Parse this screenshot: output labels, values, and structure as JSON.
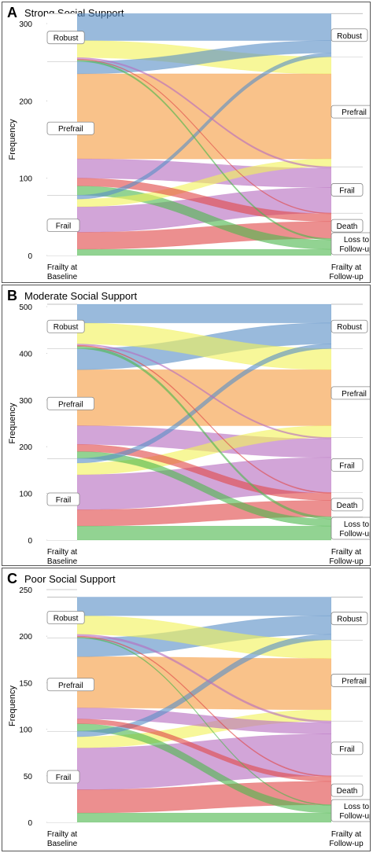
{
  "chart_data": [
    {
      "type": "alluvial",
      "panel_letter": "A",
      "title": "Strong Social Support",
      "ylabel": "Frequency",
      "ylim": [
        0,
        300
      ],
      "yticks": [
        0,
        100,
        200,
        300
      ],
      "axes": [
        "Frailty at Baseline",
        "Frailty at Follow-up"
      ],
      "baseline_states": [
        "Robust",
        "Prefrail",
        "Frail"
      ],
      "followup_states": [
        "Robust",
        "Prefrail",
        "Frail",
        "Death",
        "Loss to Follow-up"
      ],
      "colors": {
        "Robust": "#5b8fc7",
        "Prefrail": "#f59c42",
        "Frail": "#b76ec0",
        "Death": "#e04a4a",
        "Loss to Follow-up": "#4fb84f",
        "Prefrail-alt": "#f2f25a"
      },
      "flows": [
        {
          "from": "Frail",
          "to": "Loss to Follow-up",
          "value": 8
        },
        {
          "from": "Frail",
          "to": "Death",
          "value": 22
        },
        {
          "from": "Frail",
          "to": "Frail",
          "value": 33
        },
        {
          "from": "Frail",
          "to": "Prefrail",
          "value": 10
        },
        {
          "from": "Frail",
          "to": "Robust",
          "value": 5
        },
        {
          "from": "Prefrail",
          "to": "Loss to Follow-up",
          "value": 12
        },
        {
          "from": "Prefrail",
          "to": "Death",
          "value": 10
        },
        {
          "from": "Prefrail",
          "to": "Frail",
          "value": 25
        },
        {
          "from": "Prefrail",
          "to": "Prefrail",
          "value": 110
        },
        {
          "from": "Prefrail",
          "to": "Robust",
          "value": 16
        },
        {
          "from": "Robust",
          "to": "Loss to Follow-up",
          "value": 2
        },
        {
          "from": "Robust",
          "to": "Death",
          "value": 1
        },
        {
          "from": "Robust",
          "to": "Frail",
          "value": 2
        },
        {
          "from": "Robust",
          "to": "Prefrail",
          "value": 22
        },
        {
          "from": "Robust",
          "to": "Robust",
          "value": 35
        }
      ]
    },
    {
      "type": "alluvial",
      "panel_letter": "B",
      "title": "Moderate Social Support",
      "ylabel": "Frequency",
      "ylim": [
        0,
        500
      ],
      "yticks": [
        0,
        100,
        200,
        300,
        400,
        500
      ],
      "axes": [
        "Frailty at Baseline",
        "Frailty at Follow-up"
      ],
      "baseline_states": [
        "Robust",
        "Prefrail",
        "Frail"
      ],
      "followup_states": [
        "Robust",
        "Prefrail",
        "Frail",
        "Death",
        "Loss to Follow-up"
      ],
      "colors": {
        "Robust": "#5b8fc7",
        "Prefrail": "#f59c42",
        "Frail": "#b76ec0",
        "Death": "#e04a4a",
        "Loss to Follow-up": "#4fb84f",
        "Prefrail-alt": "#f2f25a"
      },
      "flows": [
        {
          "from": "Frail",
          "to": "Loss to Follow-up",
          "value": 30
        },
        {
          "from": "Frail",
          "to": "Death",
          "value": 35
        },
        {
          "from": "Frail",
          "to": "Frail",
          "value": 75
        },
        {
          "from": "Frail",
          "to": "Prefrail",
          "value": 25
        },
        {
          "from": "Frail",
          "to": "Robust",
          "value": 10
        },
        {
          "from": "Prefrail",
          "to": "Loss to Follow-up",
          "value": 15
        },
        {
          "from": "Prefrail",
          "to": "Death",
          "value": 15
        },
        {
          "from": "Prefrail",
          "to": "Frail",
          "value": 40
        },
        {
          "from": "Prefrail",
          "to": "Prefrail",
          "value": 120
        },
        {
          "from": "Prefrail",
          "to": "Robust",
          "value": 45
        },
        {
          "from": "Robust",
          "to": "Loss to Follow-up",
          "value": 5
        },
        {
          "from": "Robust",
          "to": "Death",
          "value": 2
        },
        {
          "from": "Robust",
          "to": "Frail",
          "value": 3
        },
        {
          "from": "Robust",
          "to": "Prefrail",
          "value": 45
        },
        {
          "from": "Robust",
          "to": "Robust",
          "value": 40
        }
      ]
    },
    {
      "type": "alluvial",
      "panel_letter": "C",
      "title": "Poor Social Support",
      "ylabel": "Frequency",
      "ylim": [
        0,
        250
      ],
      "yticks": [
        0,
        50,
        100,
        150,
        200,
        250
      ],
      "axes": [
        "Frailty at Baseline",
        "Frailty at Follow-up"
      ],
      "baseline_states": [
        "Robust",
        "Prefrail",
        "Frail"
      ],
      "followup_states": [
        "Robust",
        "Prefrail",
        "Frail",
        "Death",
        "Loss to Follow-up"
      ],
      "colors": {
        "Robust": "#5b8fc7",
        "Prefrail": "#f59c42",
        "Frail": "#b76ec0",
        "Death": "#e04a4a",
        "Loss to Follow-up": "#4fb84f",
        "Prefrail-alt": "#f2f25a"
      },
      "flows": [
        {
          "from": "Frail",
          "to": "Loss to Follow-up",
          "value": 10
        },
        {
          "from": "Frail",
          "to": "Death",
          "value": 25
        },
        {
          "from": "Frail",
          "to": "Frail",
          "value": 45
        },
        {
          "from": "Frail",
          "to": "Prefrail",
          "value": 12
        },
        {
          "from": "Frail",
          "to": "Robust",
          "value": 6
        },
        {
          "from": "Prefrail",
          "to": "Loss to Follow-up",
          "value": 8
        },
        {
          "from": "Prefrail",
          "to": "Death",
          "value": 5
        },
        {
          "from": "Prefrail",
          "to": "Frail",
          "value": 12
        },
        {
          "from": "Prefrail",
          "to": "Prefrail",
          "value": 55
        },
        {
          "from": "Prefrail",
          "to": "Robust",
          "value": 20
        },
        {
          "from": "Robust",
          "to": "Loss to Follow-up",
          "value": 1
        },
        {
          "from": "Robust",
          "to": "Death",
          "value": 1
        },
        {
          "from": "Robust",
          "to": "Frail",
          "value": 2
        },
        {
          "from": "Robust",
          "to": "Prefrail",
          "value": 20
        },
        {
          "from": "Robust",
          "to": "Robust",
          "value": 20
        }
      ]
    }
  ]
}
